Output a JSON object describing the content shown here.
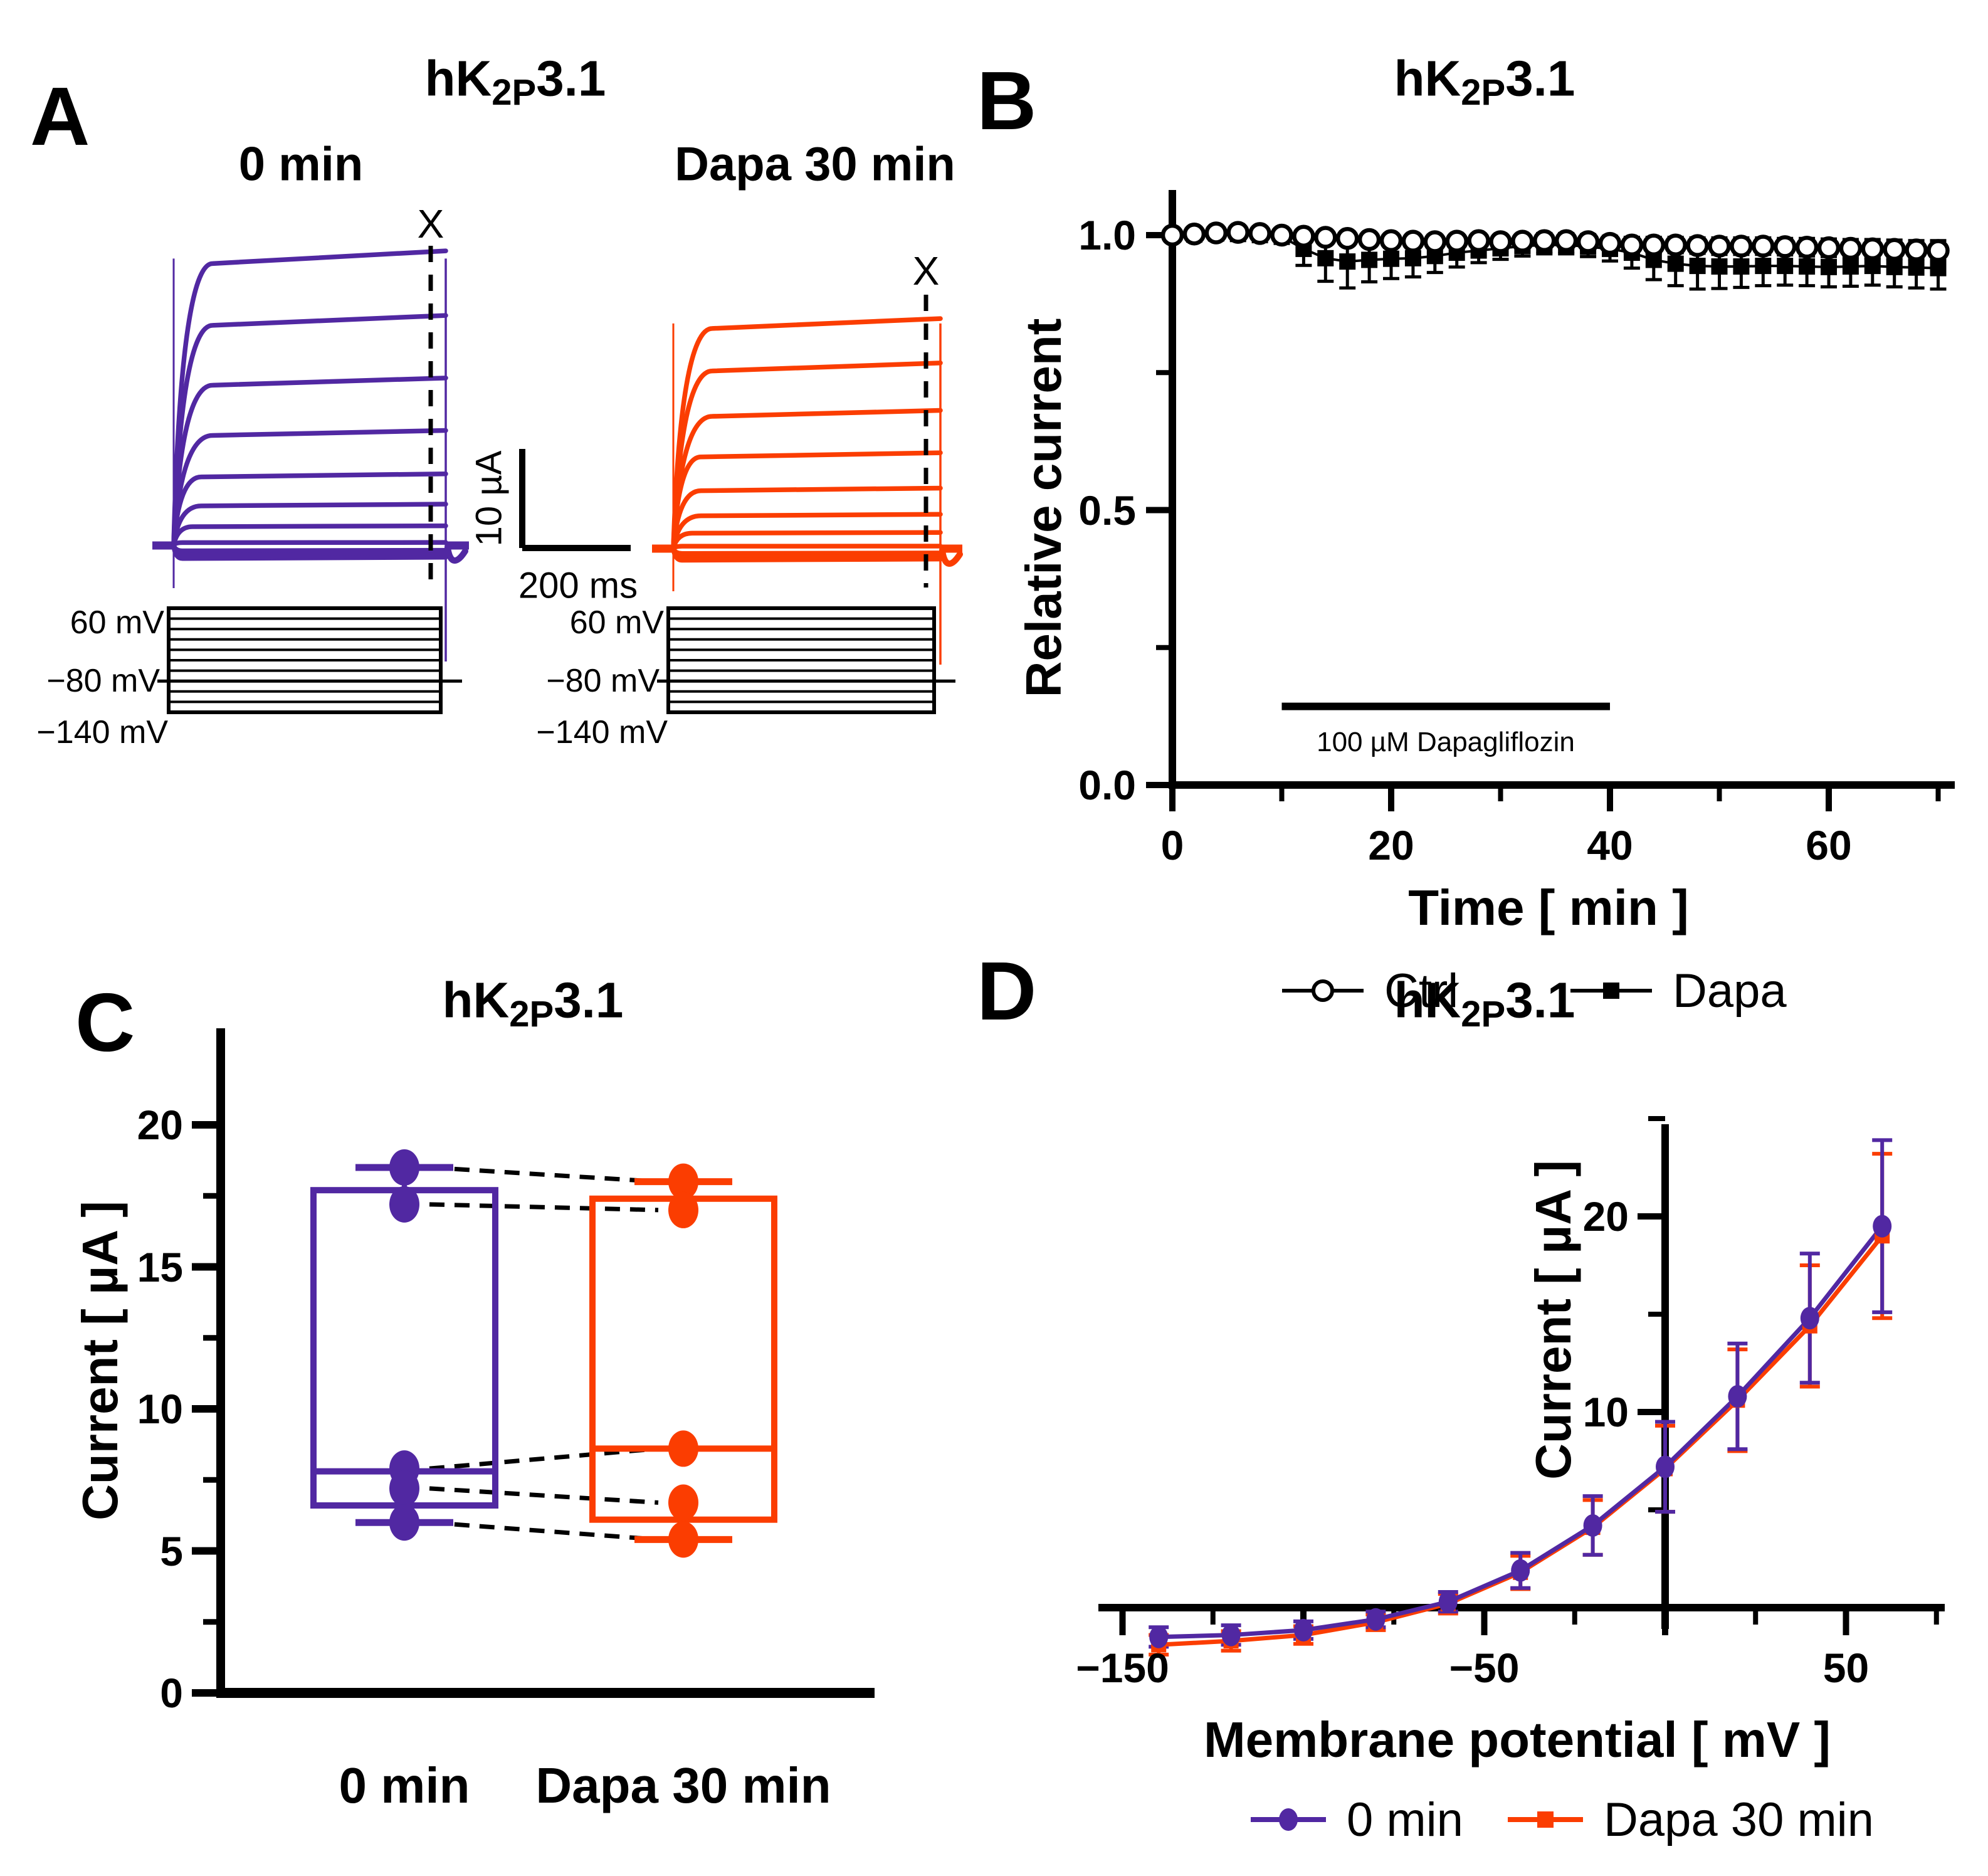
{
  "colors": {
    "purple": "#5128A2",
    "orange": "#FB3D01",
    "black": "#000000",
    "white": "#FFFFFF"
  },
  "panels": {
    "A": {
      "label": "A",
      "title": {
        "pre": "hK",
        "sub": "2P",
        "post": "3.1"
      },
      "left_title": "0 min",
      "right_title": "Dapa 30 min",
      "marker_left": "X",
      "marker_right": "X",
      "scalebar": {
        "vertical": "10 µA",
        "horizontal": "200 ms"
      },
      "protocol_labels": {
        "top": "60 mV",
        "holding": "−80 mV",
        "bottom": "−140 mV"
      }
    },
    "B": {
      "label": "B",
      "title": {
        "pre": "hK",
        "sub": "2P",
        "post": "3.1"
      },
      "ylabel": "Relative current",
      "xlabel": "Time [ min ]",
      "drug_bar_label": "100 µM Dapagliflozin",
      "legend": [
        {
          "label": "Ctrl"
        },
        {
          "label": "Dapa"
        }
      ]
    },
    "C": {
      "label": "C",
      "title": {
        "pre": "hK",
        "sub": "2P",
        "post": "3.1"
      },
      "ylabel": "Current [ µA ]",
      "categories": [
        "0 min",
        "Dapa 30 min"
      ]
    },
    "D": {
      "label": "D",
      "title": {
        "pre": "hK",
        "sub": "2P",
        "post": "3.1"
      },
      "ylabel": "Current [ µA ]",
      "xlabel": "Membrane potential [ mV ]",
      "legend": [
        {
          "label": "0 min"
        },
        {
          "label": "Dapa 30 min"
        }
      ]
    }
  },
  "chart_data": [
    {
      "id": "A-left-traces",
      "type": "line",
      "title": "0 min",
      "color": "#5128A2",
      "description": "Representative hK2P3.1 current traces before drug; voltage steps −140 to +60 mV, 500 ms",
      "y_units": "µA",
      "x_units": "ms",
      "plateau_currents_uA": [
        29.2,
        22.8,
        16.6,
        11.4,
        7.1,
        4.1,
        1.95,
        0.3,
        -0.55,
        -1.0,
        -1.35
      ]
    },
    {
      "id": "A-right-traces",
      "type": "line",
      "title": "Dapa 30 min",
      "color": "#FB3D01",
      "description": "Representative hK2P3.1 current traces after 30 min 100 µM dapagliflozin",
      "y_units": "µA",
      "x_units": "ms",
      "plateau_currents_uA": [
        22.8,
        18.4,
        13.7,
        9.5,
        6.0,
        3.4,
        1.6,
        0.25,
        -0.5,
        -0.9,
        -1.2
      ]
    },
    {
      "id": "A-voltage-protocol",
      "type": "line",
      "description": "Voltage-clamp step protocol",
      "levels_mV": [
        60,
        40,
        20,
        0,
        -20,
        -40,
        -60,
        -80,
        -100,
        -120,
        -140
      ],
      "holding_mV": -80,
      "labels": [
        "60 mV",
        "−80 mV",
        "−140 mV"
      ]
    },
    {
      "id": "B-timecourse",
      "type": "scatter",
      "title": "hK2P3.1",
      "xlabel": "Time [ min ]",
      "ylabel": "Relative current",
      "xlim": [
        0,
        72
      ],
      "ylim": [
        0,
        1.08
      ],
      "grid": false,
      "legend_position": "bottom",
      "xticks": [
        "0",
        "20",
        "40",
        "60"
      ],
      "xtick_values": [
        0,
        20,
        40,
        60
      ],
      "yticks": [
        "1.0",
        "0.5",
        "0.0"
      ],
      "ytick_values": [
        1.0,
        0.5,
        0.0
      ],
      "x": [
        0,
        2,
        4,
        6,
        8,
        10,
        12,
        14,
        16,
        18,
        20,
        22,
        24,
        26,
        28,
        30,
        32,
        34,
        36,
        38,
        40,
        42,
        44,
        46,
        48,
        50,
        52,
        54,
        56,
        58,
        60,
        62,
        64,
        66,
        68,
        70
      ],
      "series": [
        {
          "name": "Ctrl",
          "marker": "open-circle",
          "color": "#000000",
          "values": [
            1.0,
            1.002,
            1.004,
            1.005,
            1.003,
            1.0,
            0.998,
            0.996,
            0.994,
            0.992,
            0.99,
            0.989,
            0.988,
            0.989,
            0.99,
            0.988,
            0.989,
            0.99,
            0.99,
            0.988,
            0.985,
            0.982,
            0.982,
            0.982,
            0.981,
            0.98,
            0.98,
            0.98,
            0.979,
            0.978,
            0.977,
            0.976,
            0.975,
            0.974,
            0.973,
            0.972
          ],
          "sd": [
            0.004,
            0.004,
            0.005,
            0.005,
            0.005,
            0.006,
            0.008,
            0.01,
            0.012,
            0.012,
            0.012,
            0.012,
            0.012,
            0.012,
            0.012,
            0.012,
            0.012,
            0.013,
            0.013,
            0.013,
            0.013,
            0.014,
            0.014,
            0.014,
            0.014,
            0.015,
            0.015,
            0.015,
            0.015,
            0.016,
            0.016,
            0.016,
            0.017,
            0.017,
            0.017,
            0.018
          ]
        },
        {
          "name": "Dapa",
          "marker": "filled-square",
          "color": "#000000",
          "values": [
            1.0,
            1.001,
            1.003,
            1.002,
            1.0,
            0.997,
            0.975,
            0.958,
            0.952,
            0.955,
            0.957,
            0.958,
            0.962,
            0.968,
            0.972,
            0.976,
            0.98,
            0.982,
            0.982,
            0.979,
            0.975,
            0.968,
            0.955,
            0.948,
            0.944,
            0.943,
            0.943,
            0.944,
            0.944,
            0.943,
            0.942,
            0.943,
            0.944,
            0.942,
            0.941,
            0.94
          ],
          "sd": [
            0.004,
            0.005,
            0.005,
            0.006,
            0.008,
            0.012,
            0.03,
            0.042,
            0.048,
            0.04,
            0.036,
            0.034,
            0.03,
            0.026,
            0.022,
            0.02,
            0.018,
            0.016,
            0.016,
            0.018,
            0.022,
            0.028,
            0.036,
            0.04,
            0.042,
            0.04,
            0.038,
            0.036,
            0.035,
            0.035,
            0.036,
            0.036,
            0.035,
            0.036,
            0.037,
            0.038
          ]
        }
      ],
      "annotation": {
        "text": "100 µM Dapagliflozin",
        "x_start": 10,
        "x_end": 40,
        "y": 0.143
      }
    },
    {
      "id": "C-paired-box",
      "type": "box",
      "title": "hK2P3.1",
      "ylabel": "Current [ µA ]",
      "ylim": [
        0,
        21.5
      ],
      "yticks": [
        "0",
        "5",
        "10",
        "15",
        "20"
      ],
      "ytick_values": [
        0,
        5,
        10,
        15,
        20
      ],
      "categories": [
        "0 min",
        "Dapa 30 min"
      ],
      "groups": [
        {
          "name": "0 min",
          "color": "#5128A2",
          "whisker_low": 6.0,
          "q1": 6.6,
          "median": 7.8,
          "q3": 17.7,
          "whisker_high": 18.5,
          "points": [
            18.5,
            17.2,
            7.9,
            7.2,
            6.0
          ]
        },
        {
          "name": "Dapa 30 min",
          "color": "#FB3D01",
          "whisker_low": 5.4,
          "q1": 6.1,
          "median": 8.6,
          "q3": 17.4,
          "whisker_high": 18.0,
          "points": [
            18.0,
            17.0,
            8.6,
            6.7,
            5.4
          ]
        }
      ],
      "paired_lines": [
        [
          18.5,
          18.0
        ],
        [
          17.2,
          17.0
        ],
        [
          7.9,
          8.6
        ],
        [
          7.2,
          6.7
        ],
        [
          6.0,
          5.4
        ]
      ]
    },
    {
      "id": "D-iv-curve",
      "type": "line",
      "title": "hK2P3.1",
      "xlabel": "Membrane potential [ mV ]",
      "ylabel": "Current [ µA ]",
      "xlim": [
        -160,
        78
      ],
      "ylim": [
        -3,
        27
      ],
      "legend_position": "bottom",
      "xticks": [
        "−150",
        "−50",
        "50"
      ],
      "xtick_values": [
        -150,
        -50,
        50
      ],
      "yticks": [
        "10",
        "20"
      ],
      "ytick_values": [
        10,
        20
      ],
      "x_mV": [
        -140,
        -120,
        -100,
        -80,
        -60,
        -40,
        -20,
        0,
        20,
        40,
        60
      ],
      "series": [
        {
          "name": "0 min",
          "color": "#5128A2",
          "marker": "circle",
          "values": [
            -1.5,
            -1.4,
            -1.15,
            -0.6,
            0.3,
            1.9,
            4.2,
            7.2,
            10.8,
            14.8,
            19.5
          ],
          "sd": [
            0.5,
            0.5,
            0.45,
            0.4,
            0.5,
            0.9,
            1.5,
            2.3,
            2.7,
            3.3,
            4.4
          ]
        },
        {
          "name": "Dapa 30 min",
          "color": "#FB3D01",
          "marker": "square",
          "values": [
            -1.9,
            -1.7,
            -1.4,
            -0.75,
            0.2,
            1.8,
            4.1,
            7.1,
            10.6,
            14.4,
            19.0
          ],
          "sd": [
            0.5,
            0.5,
            0.45,
            0.4,
            0.5,
            0.85,
            1.4,
            2.2,
            2.6,
            3.1,
            4.2
          ]
        }
      ]
    }
  ]
}
